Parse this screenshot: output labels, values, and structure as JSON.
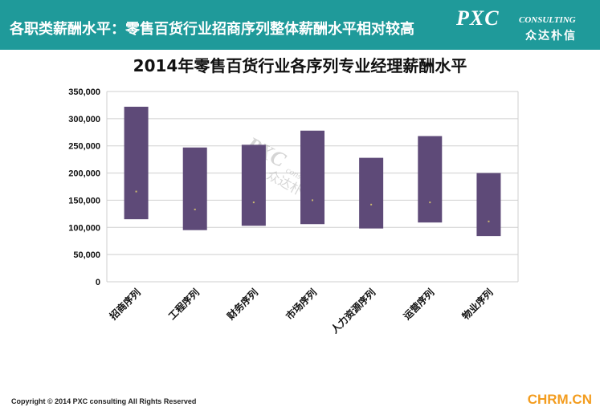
{
  "header": {
    "title": "各职类薪酬水平：零售百货行业招商序列整体薪酬水平相对较高",
    "logo_main": "PXC",
    "logo_sub": "CONSULTING",
    "logo_cn": "众达朴信"
  },
  "footer": {
    "copyright": "Copyright © 2014  PXC consulting All Rights Reserved",
    "brand": "CHRM.CN"
  },
  "watermark": {
    "main": "PXC",
    "sub": "consulting",
    "cn": "众达朴信"
  },
  "colors": {
    "header_bg": "#1f9a9a",
    "bar_fill": "#5e4a78",
    "grid": "#cfcfcf",
    "brand": "#f39c1e"
  },
  "chart_data": {
    "type": "bar",
    "title": "2014年零售百货行业各序列专业经理薪酬水平",
    "categories": [
      "招商序列",
      "工程序列",
      "财务序列",
      "市场序列",
      "人力资源序列",
      "运营序列",
      "物业序列"
    ],
    "series": [
      {
        "low": [
          115000,
          95000,
          103000,
          106000,
          98000,
          109000,
          84000
        ],
        "high": [
          322000,
          247000,
          252000,
          278000,
          228000,
          268000,
          200000
        ],
        "mid": [
          166000,
          133000,
          146000,
          150000,
          142000,
          146000,
          111000
        ]
      }
    ],
    "ylim": [
      0,
      350000
    ],
    "yticks": [
      0,
      50000,
      100000,
      150000,
      200000,
      250000,
      300000,
      350000
    ],
    "ytick_labels": [
      "0",
      "50,000",
      "100,000",
      "150,000",
      "200,000",
      "250,000",
      "300,000",
      "350,000"
    ],
    "grid": true,
    "legend": "none"
  }
}
